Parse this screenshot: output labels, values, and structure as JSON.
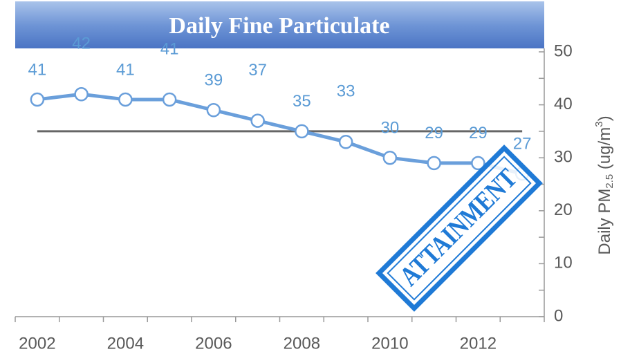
{
  "chart_data": {
    "type": "line",
    "title": "Daily Fine Particulate",
    "categories": [
      "2002",
      null,
      "2004",
      null,
      "2006",
      null,
      "2008",
      null,
      "2010",
      null,
      "2012",
      null
    ],
    "series": [
      {
        "color": "#6a9fdb",
        "values": [
          41,
          42,
          41,
          41,
          39,
          37,
          35,
          33,
          30,
          29,
          29,
          27
        ]
      }
    ],
    "ylim": [
      0,
      50
    ],
    "yticks": [
      0,
      10,
      20,
      30,
      40,
      50
    ],
    "yminor_ticks": [
      5,
      15,
      25,
      35,
      45
    ],
    "y_axis_side": "right",
    "y_label": {
      "main": "Daily PM",
      "sub": "2.5",
      "mid": " (ug/m",
      "sup": "3",
      "end": ")"
    },
    "reference_line": {
      "value": 35,
      "color": "#666666"
    },
    "annotation": "ATTAINMENT"
  }
}
